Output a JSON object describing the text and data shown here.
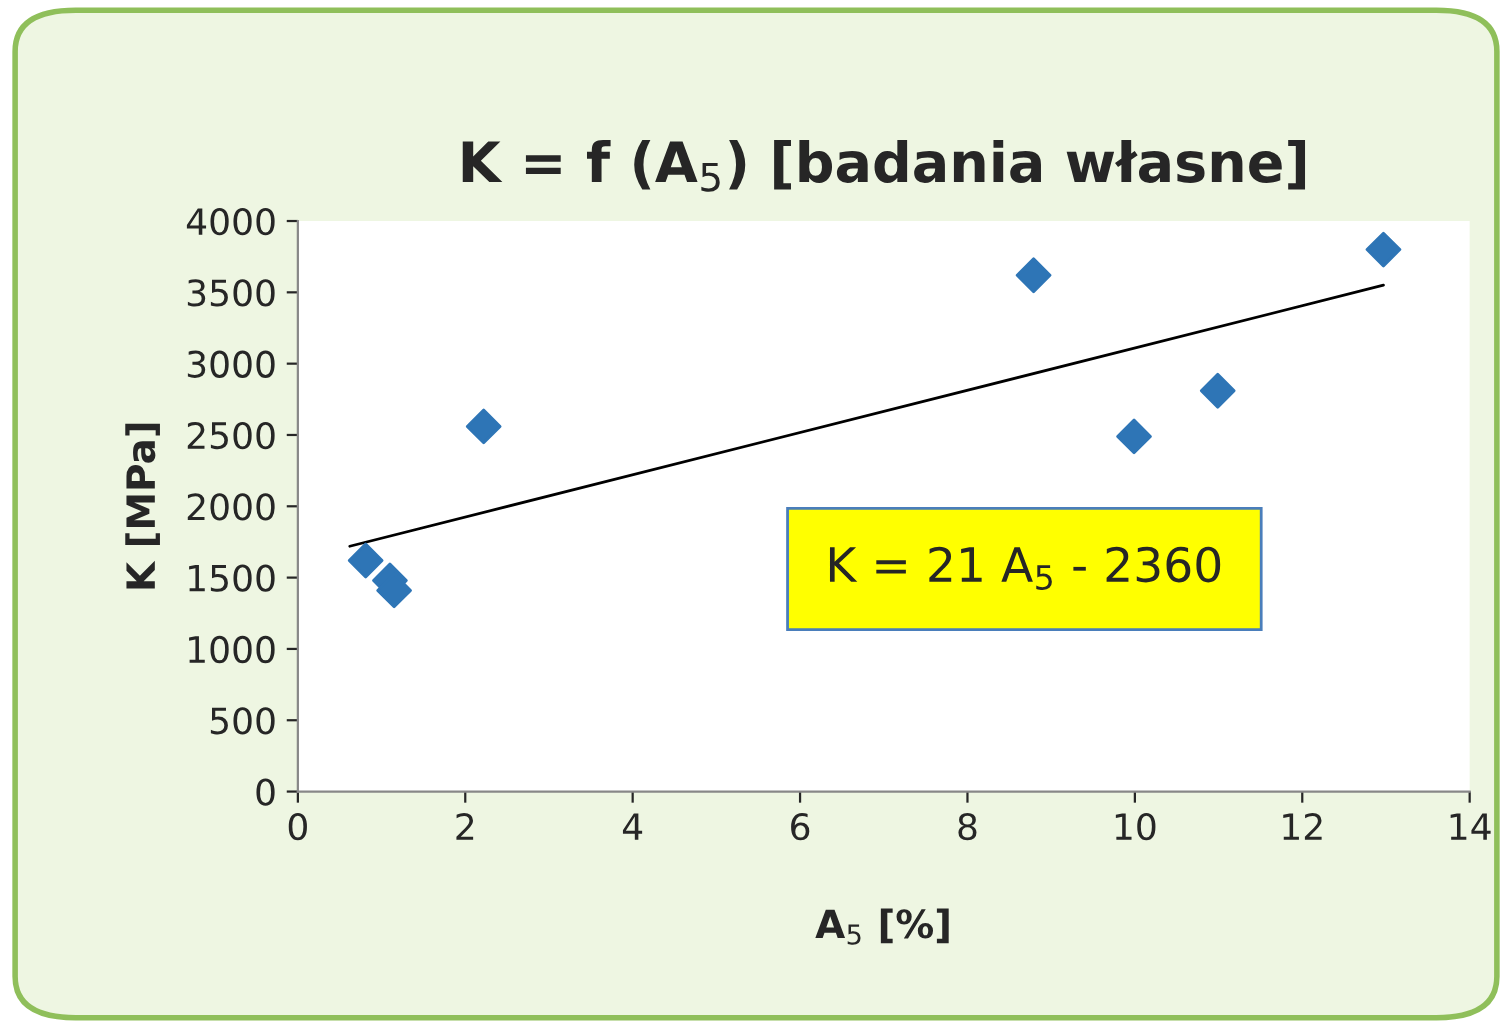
{
  "chart_data": {
    "type": "scatter",
    "title": "K = f (A$_{5}$) [badania własne]",
    "xlabel": "A$_{5}$ [%]",
    "ylabel": "K [MPa]",
    "x": [
      0.81,
      1.1,
      1.15,
      2.22,
      8.79,
      9.99,
      10.99,
      12.97
    ],
    "series": [
      {
        "color": "#2e75b6",
        "marker": "diamond",
        "values": [
          1620,
          1480,
          1410,
          2560,
          3620,
          2490,
          2810,
          3800
        ]
      },
      {
        "type": "line",
        "color": "#000000",
        "marker": "none",
        "line_style": "solid",
        "x": [
          0.62,
          12.97
        ],
        "values": [
          1720,
          3550
        ]
      }
    ],
    "annotations": [
      "K = 21 A$_{5}$ - 2360"
    ],
    "xlim": [
      0,
      14
    ],
    "xticks": [
      0,
      2,
      4,
      6,
      8,
      10,
      12,
      14
    ],
    "ylim": [
      0,
      4000
    ],
    "yticks": [
      0,
      500,
      1000,
      1500,
      2000,
      2500,
      3000,
      3500,
      4000
    ],
    "grid": false,
    "legend": false
  }
}
